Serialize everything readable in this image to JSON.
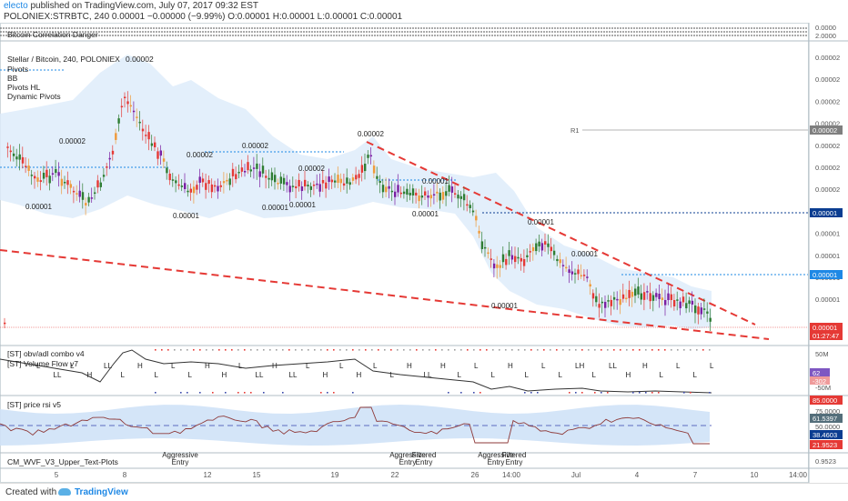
{
  "header": {
    "author": "electo",
    "published_text": "published on TradingView.com, July 07, 2017 09:32 EST",
    "symbol_line": "POLONIEX:STRBTC, 240  0.00001  −0.00000 (−9.99%)  O:0.00001  H:0.00001  L:0.00001  C:0.00001"
  },
  "panes": {
    "top_indicator": "Bitcoin Correlation Danger",
    "main_title": "Stellar / Bitcoin, 240, POLONIEX",
    "main_title_value": "0.00002",
    "main_legend": [
      "Pivots",
      "BB",
      "Pivots HL",
      "Dynamic Pivots"
    ],
    "obv_title": "[ST] obv/adl combo v4",
    "vflow_title": "[ST] Volume Flow v7",
    "rsi_title": "[ST] price rsi v5",
    "wvf_title": "CM_WVF_V3_Upper_Text-Plots"
  },
  "price_labels": [
    "0.00002",
    "0.00002",
    "0.00002",
    "0.00002",
    "0.00002",
    "0.00001",
    "0.00001",
    "0.00001",
    "0.00001",
    "0.00001",
    "0.00001",
    "0.00001",
    "0.00001",
    "0.00001"
  ],
  "pivot_label_r1": "R1",
  "axis": {
    "top_values": [
      "0.0000",
      "2.0000"
    ],
    "main_values": [
      "0.00002",
      "0.00002",
      "0.00002",
      "0.00002",
      "0.00002",
      "0.00002",
      "0.00002",
      "0.00001",
      "0.00001",
      "0.00001",
      "0.00001",
      "0.00001"
    ],
    "main_tags": [
      {
        "text": "0.00002",
        "color": "#7f7f7f"
      },
      {
        "text": "0.00001",
        "color": "#0b3d91"
      },
      {
        "text": "0.00001",
        "color": "#1e88e5"
      },
      {
        "text": "0.00001",
        "color": "#e53935"
      },
      {
        "text": "01:27:47",
        "color": "#e53935"
      }
    ],
    "obv_values": [
      "50M",
      "-50M"
    ],
    "obv_tags": [
      {
        "text": "62",
        "color": "#7e57c2"
      },
      {
        "text": "-302",
        "color": "#ef9a9a"
      }
    ],
    "rsi_values": [
      "85.0000",
      "75.0000",
      "50.0000",
      "25.0000"
    ],
    "rsi_tags": [
      {
        "text": "85.0000",
        "color": "#e53935"
      },
      {
        "text": "61.5397",
        "color": "#546e7a"
      },
      {
        "text": "38.4603",
        "color": "#0b3d91"
      },
      {
        "text": "21.9523",
        "color": "#e53935"
      }
    ],
    "wvf_value": "0.9523",
    "x_labels": [
      "5",
      "8",
      "12",
      "15",
      "19",
      "22",
      "26",
      "14:00",
      "Jul",
      "4",
      "7",
      "10",
      "14:00"
    ]
  },
  "volume_flow_marks": [
    "L",
    "LL",
    "L",
    "H",
    "LL",
    "L",
    "H",
    "L",
    "L",
    "L",
    "H",
    "H",
    "L",
    "LL",
    "H",
    "LL",
    "L",
    "H",
    "L",
    "H",
    "L",
    "L",
    "H",
    "LL",
    "H",
    "L",
    "L",
    "L",
    "H",
    "L",
    "L",
    "L",
    "LH",
    "L",
    "LL",
    "H",
    "H",
    "L",
    "L",
    "L",
    "L"
  ],
  "wvf_texts": [
    {
      "line1": "Aggressive",
      "line2": "Entry"
    },
    {
      "line1": "Aggressive",
      "line2": "Entry"
    },
    {
      "line1": "Filtered",
      "line2": "Entry"
    },
    {
      "line1": "Aggressive",
      "line2": "Entry"
    },
    {
      "line1": "Filtered",
      "line2": "Entry"
    }
  ],
  "footer": {
    "created": "Created with",
    "brand": "TradingView"
  },
  "colors": {
    "up": "#2e7d32",
    "down": "#e53935",
    "neutral": "#7b1fa2",
    "warm": "#ef9a3a",
    "band": "#dcebfa",
    "pivot": "#1e88e5",
    "trend": "#e53935"
  }
}
